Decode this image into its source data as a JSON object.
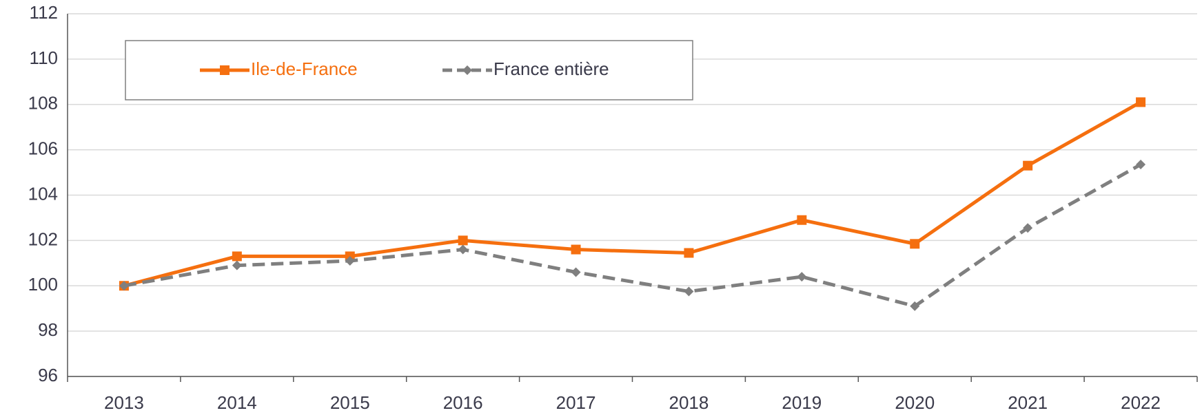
{
  "chart_data": {
    "type": "line",
    "categories": [
      "2013",
      "2014",
      "2015",
      "2016",
      "2017",
      "2018",
      "2019",
      "2020",
      "2021",
      "2022"
    ],
    "series": [
      {
        "name": "Ile-de-France",
        "color": "#f56f0f",
        "marker": "square",
        "dash": false,
        "values": [
          100,
          101.3,
          101.3,
          102.0,
          101.6,
          101.45,
          102.9,
          101.85,
          105.3,
          108.1
        ]
      },
      {
        "name": "France entière",
        "color": "#7f7f7f",
        "marker": "diamond",
        "dash": true,
        "values": [
          100,
          100.9,
          101.1,
          101.6,
          100.6,
          99.75,
          100.4,
          99.1,
          102.55,
          105.35
        ]
      }
    ],
    "ylim": [
      96,
      112
    ],
    "yticks": [
      96,
      98,
      100,
      102,
      104,
      106,
      108,
      110,
      112
    ],
    "grid": true
  }
}
